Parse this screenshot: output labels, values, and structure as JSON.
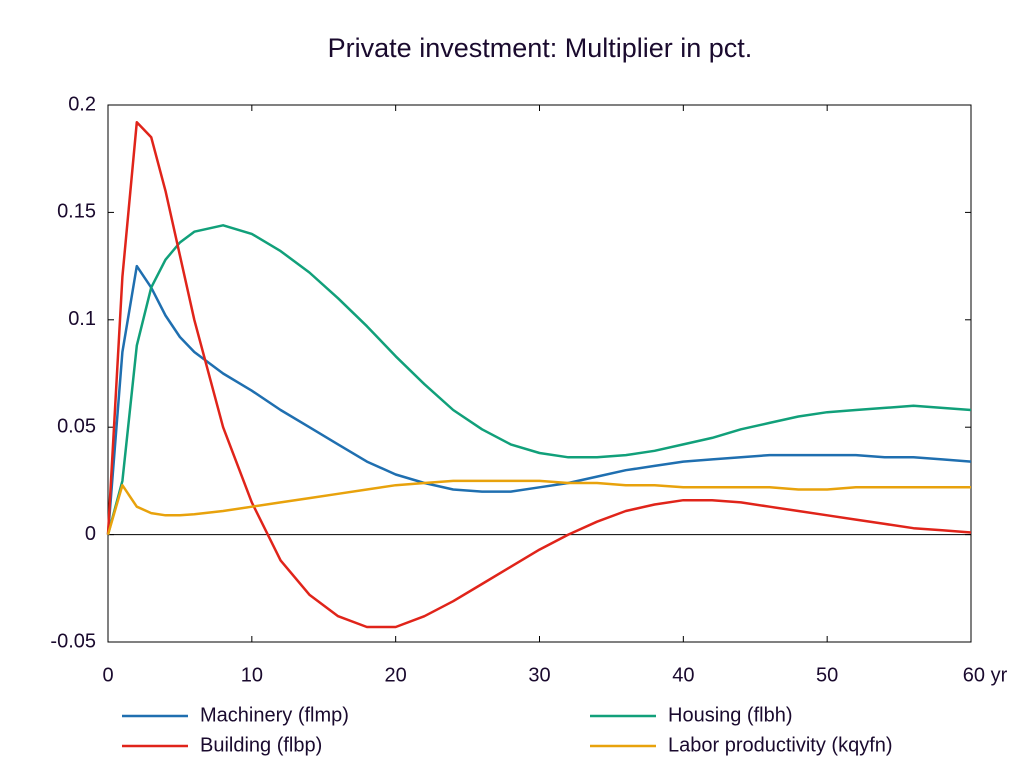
{
  "chart_data": {
    "type": "line",
    "title": "Private investment: Multiplier in pct.",
    "x": [
      0,
      1,
      2,
      3,
      4,
      5,
      6,
      8,
      10,
      12,
      14,
      16,
      18,
      20,
      22,
      24,
      26,
      28,
      30,
      32,
      34,
      36,
      38,
      40,
      42,
      44,
      46,
      48,
      50,
      52,
      54,
      56,
      58,
      60
    ],
    "series": [
      {
        "name": "Machinery (flmp)",
        "color": "#1f6fb0",
        "values": [
          0,
          0.085,
          0.125,
          0.115,
          0.102,
          0.092,
          0.085,
          0.075,
          0.067,
          0.058,
          0.05,
          0.042,
          0.034,
          0.028,
          0.024,
          0.021,
          0.02,
          0.02,
          0.022,
          0.024,
          0.027,
          0.03,
          0.032,
          0.034,
          0.035,
          0.036,
          0.037,
          0.037,
          0.037,
          0.037,
          0.036,
          0.036,
          0.035,
          0.034
        ]
      },
      {
        "name": "Housing (flbh)",
        "color": "#11a07a",
        "values": [
          0,
          0.025,
          0.088,
          0.115,
          0.128,
          0.136,
          0.141,
          0.144,
          0.14,
          0.132,
          0.122,
          0.11,
          0.097,
          0.083,
          0.07,
          0.058,
          0.049,
          0.042,
          0.038,
          0.036,
          0.036,
          0.037,
          0.039,
          0.042,
          0.045,
          0.049,
          0.052,
          0.055,
          0.057,
          0.058,
          0.059,
          0.06,
          0.059,
          0.058
        ]
      },
      {
        "name": "Building (flbp)",
        "color": "#e0241a",
        "values": [
          0,
          0.12,
          0.192,
          0.185,
          0.16,
          0.13,
          0.1,
          0.05,
          0.015,
          -0.012,
          -0.028,
          -0.038,
          -0.043,
          -0.043,
          -0.038,
          -0.031,
          -0.023,
          -0.015,
          -0.007,
          0,
          0.006,
          0.011,
          0.014,
          0.016,
          0.016,
          0.015,
          0.013,
          0.011,
          0.009,
          0.007,
          0.005,
          0.003,
          0.002,
          0.001
        ]
      },
      {
        "name": "Labor productivity (kqyfn)",
        "color": "#e8a20c",
        "values": [
          0,
          0.023,
          0.013,
          0.01,
          0.009,
          0.009,
          0.0095,
          0.011,
          0.013,
          0.015,
          0.017,
          0.019,
          0.021,
          0.023,
          0.024,
          0.025,
          0.025,
          0.025,
          0.025,
          0.024,
          0.024,
          0.023,
          0.023,
          0.022,
          0.022,
          0.022,
          0.022,
          0.021,
          0.021,
          0.022,
          0.022,
          0.022,
          0.022,
          0.022
        ]
      }
    ],
    "xlim": [
      0,
      60
    ],
    "xticks": [
      0,
      10,
      20,
      30,
      40,
      50,
      {
        "value": 60,
        "label": "60 yr"
      }
    ],
    "ylim": [
      -0.05,
      0.2
    ],
    "yticks": [
      -0.05,
      0,
      0.05,
      0.1,
      0.15,
      0.2
    ]
  }
}
